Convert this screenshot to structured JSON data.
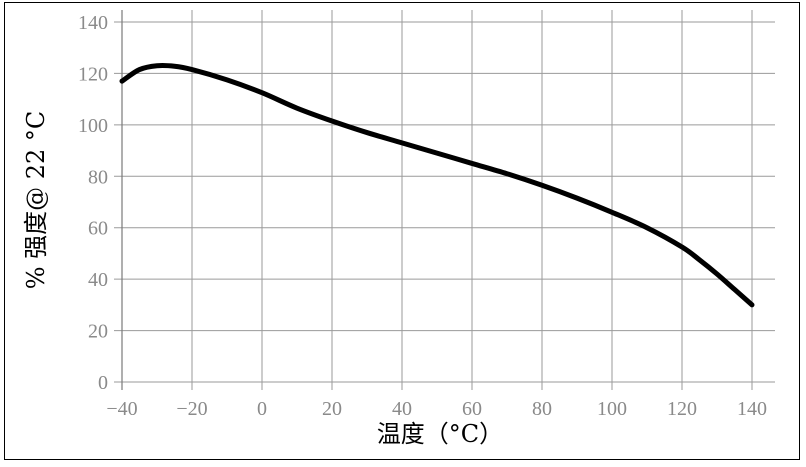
{
  "chart_data": {
    "type": "line",
    "title": "",
    "xlabel": "温度（°C）",
    "ylabel": "% 强度@ 22 °C",
    "xlim": [
      -40,
      140
    ],
    "ylim": [
      0,
      140
    ],
    "x_ticks": [
      "−40",
      "−20",
      "0",
      "20",
      "40",
      "60",
      "80",
      "100",
      "120",
      "140"
    ],
    "y_ticks": [
      "0",
      "20",
      "40",
      "60",
      "80",
      "100",
      "120",
      "140"
    ],
    "grid": true,
    "series": [
      {
        "color": "#000000",
        "x": [
          -40,
          -35,
          -30,
          -25,
          -20,
          -10,
          0,
          10,
          20,
          30,
          40,
          50,
          60,
          70,
          80,
          90,
          100,
          110,
          120,
          125,
          130,
          135,
          140
        ],
        "y": [
          117,
          121.5,
          123,
          122.8,
          121.5,
          117.5,
          112.5,
          106.5,
          101.5,
          97,
          93,
          89,
          85,
          81,
          76.5,
          71.5,
          66,
          60,
          52.5,
          47.5,
          42,
          36,
          30
        ]
      }
    ]
  }
}
